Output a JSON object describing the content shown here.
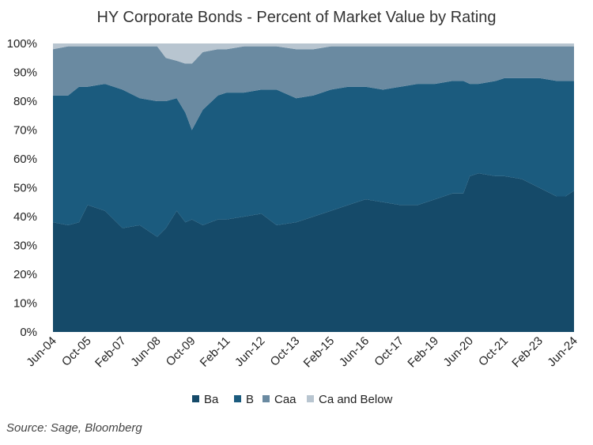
{
  "chart_data": {
    "type": "area",
    "stacked": true,
    "title": "HY Corporate Bonds - Percent of Market Value by Rating",
    "source": "Source: Sage, Bloomberg",
    "xlabel": "",
    "ylabel": "",
    "ylim": [
      0,
      100
    ],
    "xlim": [
      "2004-06",
      "2024-06"
    ],
    "x_tick_labels": [
      "Jun-04",
      "Oct-05",
      "Feb-07",
      "Jun-08",
      "Oct-09",
      "Feb-11",
      "Jun-12",
      "Oct-13",
      "Feb-15",
      "Jun-16",
      "Oct-17",
      "Feb-19",
      "Jun-20",
      "Oct-21",
      "Feb-23",
      "Jun-24"
    ],
    "y_tick_labels": [
      "0%",
      "10%",
      "20%",
      "30%",
      "40%",
      "50%",
      "60%",
      "70%",
      "80%",
      "90%",
      "100%"
    ],
    "legend_position": "bottom",
    "grid": false,
    "x": [
      "2004-06",
      "2005-01",
      "2005-06",
      "2005-10",
      "2006-06",
      "2007-02",
      "2007-10",
      "2008-06",
      "2008-10",
      "2009-03",
      "2009-07",
      "2009-10",
      "2010-03",
      "2010-10",
      "2011-02",
      "2011-10",
      "2012-06",
      "2013-01",
      "2013-10",
      "2014-06",
      "2015-02",
      "2015-10",
      "2016-06",
      "2017-02",
      "2017-10",
      "2018-06",
      "2019-02",
      "2019-10",
      "2020-03",
      "2020-06",
      "2020-10",
      "2021-06",
      "2021-10",
      "2022-06",
      "2023-02",
      "2023-10",
      "2024-02",
      "2024-06"
    ],
    "series": [
      {
        "name": "Ba",
        "color": "#154a69",
        "values": [
          38,
          37,
          38,
          44,
          42,
          36,
          37,
          33,
          36,
          42,
          38,
          39,
          37,
          39,
          39,
          40,
          41,
          37,
          38,
          40,
          42,
          44,
          46,
          45,
          44,
          44,
          46,
          48,
          48,
          54,
          55,
          54,
          54,
          53,
          50,
          47,
          47,
          49
        ]
      },
      {
        "name": "B",
        "color": "#1b5b7e",
        "values": [
          44,
          45,
          47,
          41,
          44,
          48,
          44,
          47,
          44,
          39,
          38,
          31,
          40,
          43,
          44,
          43,
          43,
          47,
          43,
          42,
          42,
          41,
          39,
          39,
          41,
          42,
          40,
          39,
          39,
          32,
          31,
          33,
          34,
          35,
          38,
          40,
          40,
          38
        ]
      },
      {
        "name": "Caa",
        "color": "#6a8aa1",
        "values": [
          16,
          17,
          14,
          14,
          13,
          15,
          18,
          19,
          15,
          13,
          17,
          23,
          20,
          16,
          15,
          16,
          15,
          15,
          17,
          16,
          15,
          14,
          14,
          15,
          14,
          13,
          13,
          12,
          12,
          13,
          13,
          12,
          11,
          11,
          11,
          12,
          12,
          12
        ]
      },
      {
        "name": "Ca and Below",
        "color": "#b8c5d0",
        "values": [
          2,
          1,
          1,
          1,
          1,
          1,
          1,
          1,
          5,
          6,
          7,
          7,
          3,
          2,
          2,
          1,
          1,
          1,
          2,
          2,
          1,
          1,
          1,
          1,
          1,
          1,
          1,
          1,
          1,
          1,
          1,
          1,
          1,
          1,
          1,
          1,
          1,
          1
        ]
      }
    ]
  }
}
